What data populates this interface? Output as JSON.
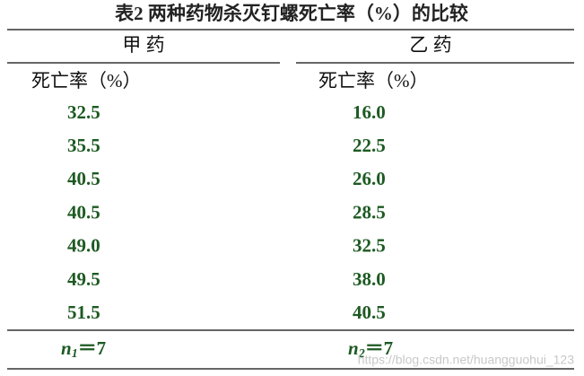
{
  "title": "表2  两种药物杀灭钉螺死亡率（%）的比较",
  "table": {
    "groups": [
      "甲 药",
      "乙 药"
    ],
    "subheaders": [
      "死亡率（%）",
      "死亡率（%）"
    ],
    "rows": [
      [
        "32.5",
        "16.0"
      ],
      [
        "35.5",
        "22.5"
      ],
      [
        "40.5",
        "26.0"
      ],
      [
        "40.5",
        "28.5"
      ],
      [
        "49.0",
        "32.5"
      ],
      [
        "49.5",
        "38.0"
      ],
      [
        "51.5",
        "40.5"
      ]
    ],
    "footer": [
      {
        "symbol": "n",
        "subscript": "1",
        "rest": "＝7"
      },
      {
        "symbol": "n",
        "subscript": "2",
        "rest": "＝7"
      }
    ]
  },
  "watermark": "https://blog.csdn.net/huangguohui_123"
}
